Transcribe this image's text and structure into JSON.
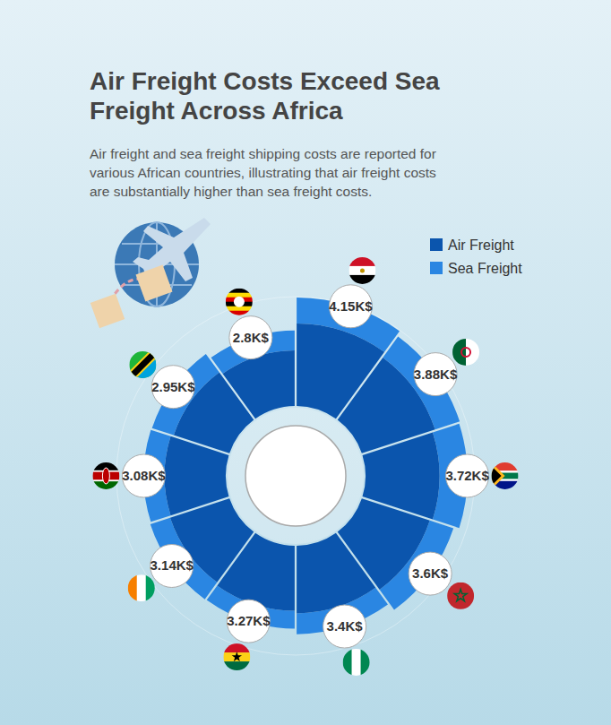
{
  "chart_data": {
    "type": "radial_bar",
    "title": "Air Freight Costs Exceed Sea Freight Across Africa",
    "subtitle": "Air freight and sea freight shipping costs are reported for various African countries, illustrating that air freight costs are substantially higher than sea freight costs.",
    "categories": [
      null,
      null,
      null,
      null,
      null,
      null,
      null,
      null,
      null,
      null
    ],
    "series": [
      {
        "name": "Air Freight",
        "color": "#0b55ad",
        "values": [
          4.15,
          3.88,
          3.72,
          3.6,
          3.4,
          3.27,
          3.14,
          3.08,
          2.95,
          2.8
        ],
        "value_labels": [
          "4.15K$",
          "3.88K$",
          "3.72K$",
          "3.6K$",
          "3.4K$",
          "3.27K$",
          "3.14K$",
          "3.08K$",
          "2.95K$",
          "2.8K$"
        ]
      },
      {
        "name": "Sea Freight",
        "color": "#2a86e2",
        "values": [
          1.3,
          1.3,
          1.4,
          1.25,
          1.05,
          0.9,
          1.05,
          1.05,
          1.15,
          1.0
        ]
      }
    ],
    "ylim": [
      0,
      5.5
    ],
    "yticks": [],
    "stacked": true,
    "data_labels": true,
    "tick_labels": false,
    "legend": "top-right"
  }
}
